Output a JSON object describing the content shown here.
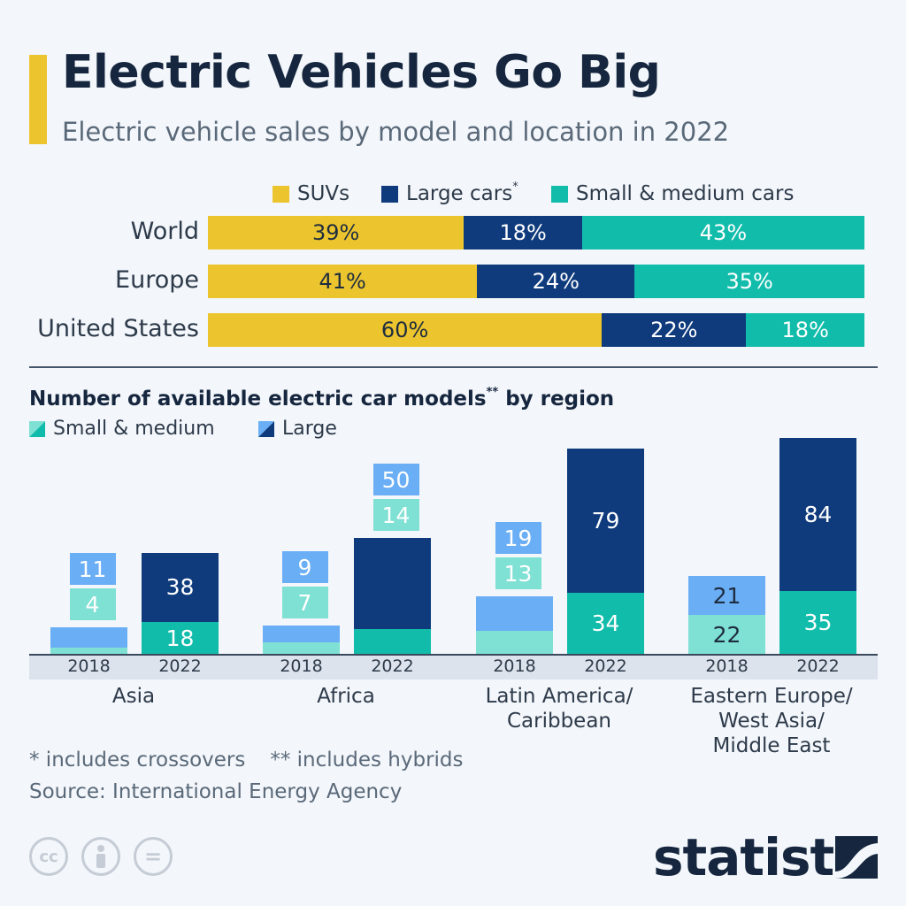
{
  "header": {
    "title": "Electric Vehicles Go Big",
    "subtitle": "Electric vehicle sales by model and location in 2022"
  },
  "colors": {
    "suv": "#ecc42e",
    "large": "#0f3b7d",
    "small_medium": "#12bcab",
    "large_2018": "#6aaef5",
    "small_medium_2018": "#7fe0d4",
    "accent": "#ecc42e",
    "text": "#15263e"
  },
  "legend1": {
    "suv": "SUVs",
    "large": "Large cars",
    "large_sup": "*",
    "small": "Small & medium cars"
  },
  "section2": {
    "title": "Number of available electric car models",
    "title_sup": "**",
    "title_suffix": " by region",
    "legend_small": "Small & medium",
    "legend_large": "Large"
  },
  "chart_data": [
    {
      "type": "bar",
      "orientation": "horizontal",
      "stacked": true,
      "categories": [
        "World",
        "Europe",
        "United States"
      ],
      "series": [
        {
          "name": "SUVs",
          "values": [
            39,
            41,
            60
          ],
          "labels": [
            "39%",
            "41%",
            "60%"
          ]
        },
        {
          "name": "Large cars*",
          "values": [
            18,
            24,
            22
          ],
          "labels": [
            "18%",
            "24%",
            "22%"
          ]
        },
        {
          "name": "Small & medium cars",
          "values": [
            43,
            35,
            18
          ],
          "labels": [
            "43%",
            "35%",
            "18%"
          ]
        }
      ],
      "xlim": [
        0,
        100
      ]
    },
    {
      "type": "bar",
      "stacked": true,
      "title": "Number of available electric car models** by region",
      "groups": [
        {
          "region_lines": [
            "Asia"
          ],
          "bars": [
            {
              "year": "2018",
              "small_medium": 4,
              "large": 11
            },
            {
              "year": "2022",
              "small_medium": 18,
              "large": 38
            }
          ]
        },
        {
          "region_lines": [
            "Africa"
          ],
          "bars": [
            {
              "year": "2018",
              "small_medium": 7,
              "large": 9
            },
            {
              "year": "2022",
              "small_medium": 14,
              "large": 50
            }
          ]
        },
        {
          "region_lines": [
            "Latin America/",
            "Caribbean"
          ],
          "bars": [
            {
              "year": "2018",
              "small_medium": 13,
              "large": 19
            },
            {
              "year": "2022",
              "small_medium": 34,
              "large": 79
            }
          ]
        },
        {
          "region_lines": [
            "Eastern Europe/",
            "West Asia/",
            "Middle East"
          ],
          "bars": [
            {
              "year": "2018",
              "small_medium": 22,
              "large": 21
            },
            {
              "year": "2022",
              "small_medium": 35,
              "large": 84
            }
          ]
        }
      ],
      "series": [
        {
          "name": "Small & medium"
        },
        {
          "name": "Large"
        }
      ],
      "grid": false
    }
  ],
  "footer": {
    "note1": "* includes crossovers",
    "note2": "** includes hybrids",
    "source": "Source: International Energy Agency",
    "brand": "statista",
    "license_icons": [
      "cc",
      "by",
      "="
    ]
  }
}
